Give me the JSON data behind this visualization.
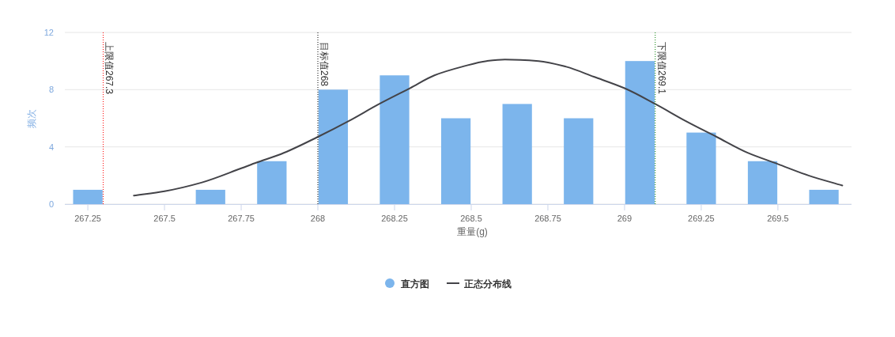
{
  "chart_data": {
    "type": "bar",
    "xlabel": "重量(g)",
    "ylabel": "频次",
    "xlim": [
      267.175,
      269.74
    ],
    "xticks": [
      267.25,
      267.5,
      267.75,
      268,
      268.25,
      268.5,
      268.75,
      269,
      269.25,
      269.5
    ],
    "ylim": [
      0,
      12
    ],
    "yticks": [
      0,
      4,
      8,
      12
    ],
    "grid": "y",
    "legend": "bottom",
    "series": [
      {
        "name": "直方图",
        "color": "#7cb5ec",
        "x": [
          267.25,
          267.65,
          267.85,
          268.05,
          268.25,
          268.45,
          268.65,
          268.85,
          269.05,
          269.25,
          269.45,
          269.65
        ],
        "values": [
          1,
          1,
          3,
          8,
          9,
          6,
          7,
          6,
          10,
          5,
          3,
          1
        ]
      },
      {
        "name": "正态分布线",
        "type": "line",
        "color": "#434348",
        "x": [
          267.4,
          267.5,
          267.62,
          267.75,
          267.8,
          267.88,
          268.0,
          268.1,
          268.2,
          268.3,
          268.38,
          268.47,
          268.55,
          268.61,
          268.72,
          268.81,
          268.9,
          269.0,
          269.1,
          269.2,
          269.3,
          269.4,
          269.5,
          269.6,
          269.71
        ],
        "values": [
          0.6,
          0.9,
          1.5,
          2.5,
          2.9,
          3.5,
          4.7,
          5.8,
          7.0,
          8.1,
          9.0,
          9.6,
          10.0,
          10.1,
          10.0,
          9.6,
          8.9,
          8.1,
          7.0,
          5.8,
          4.7,
          3.6,
          2.8,
          2.0,
          1.3
        ]
      }
    ],
    "ref_lines": [
      {
        "axis": "x",
        "value": 267.3,
        "label": "上限值267.3",
        "color": "#ff0000",
        "line_style": "dotted"
      },
      {
        "axis": "x",
        "value": 268,
        "label": "目标值268",
        "color": "#000000",
        "line_style": "dotted"
      },
      {
        "axis": "x",
        "value": 269.1,
        "label": "下限值269.1",
        "color": "#008000",
        "line_style": "dotted"
      }
    ]
  }
}
